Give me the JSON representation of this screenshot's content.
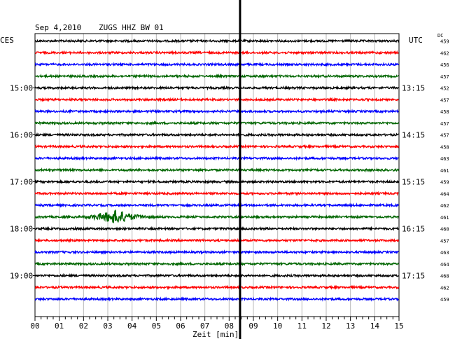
{
  "header": {
    "date": "Sep 4,2010",
    "station": "ZUGS HHZ BW 01"
  },
  "left_tz": "CES",
  "right_tz": "UTC",
  "dc_label": "DC",
  "chart_data": {
    "type": "line",
    "title": "Sep 4,2010   ZUGS HHZ BW 01",
    "xlabel": "Zeit [min]",
    "xlim": [
      0,
      15
    ],
    "x_ticks": [
      "00",
      "01",
      "02",
      "03",
      "04",
      "05",
      "06",
      "07",
      "08",
      "09",
      "10",
      "11",
      "12",
      "13",
      "14",
      "15"
    ],
    "trace_colors": [
      "#000000",
      "#ff0000",
      "#0000ff",
      "#006600"
    ],
    "trace_count": 23,
    "left_time_labels": [
      {
        "trace": 4,
        "label": "15:00"
      },
      {
        "trace": 8,
        "label": "16:00"
      },
      {
        "trace": 12,
        "label": "17:00"
      },
      {
        "trace": 16,
        "label": "18:00"
      },
      {
        "trace": 20,
        "label": "19:00"
      }
    ],
    "right_time_labels": [
      {
        "trace": 4,
        "label": "13:15"
      },
      {
        "trace": 8,
        "label": "14:15"
      },
      {
        "trace": 12,
        "label": "15:15"
      },
      {
        "trace": 16,
        "label": "16:15"
      },
      {
        "trace": 20,
        "label": "17:15"
      }
    ],
    "dc_values": [
      "459",
      "462",
      "456",
      "457",
      "452",
      "457",
      "458",
      "457",
      "457",
      "458",
      "463",
      "461",
      "459",
      "464",
      "462",
      "461",
      "460",
      "457",
      "463",
      "464",
      "468",
      "462",
      "459"
    ],
    "events": [
      {
        "trace": 15,
        "start_min": 1.5,
        "peak_min": 3.4,
        "end_min": 5.2,
        "description": "earthquake signal"
      }
    ],
    "vertical_marker_min": 8.45
  }
}
